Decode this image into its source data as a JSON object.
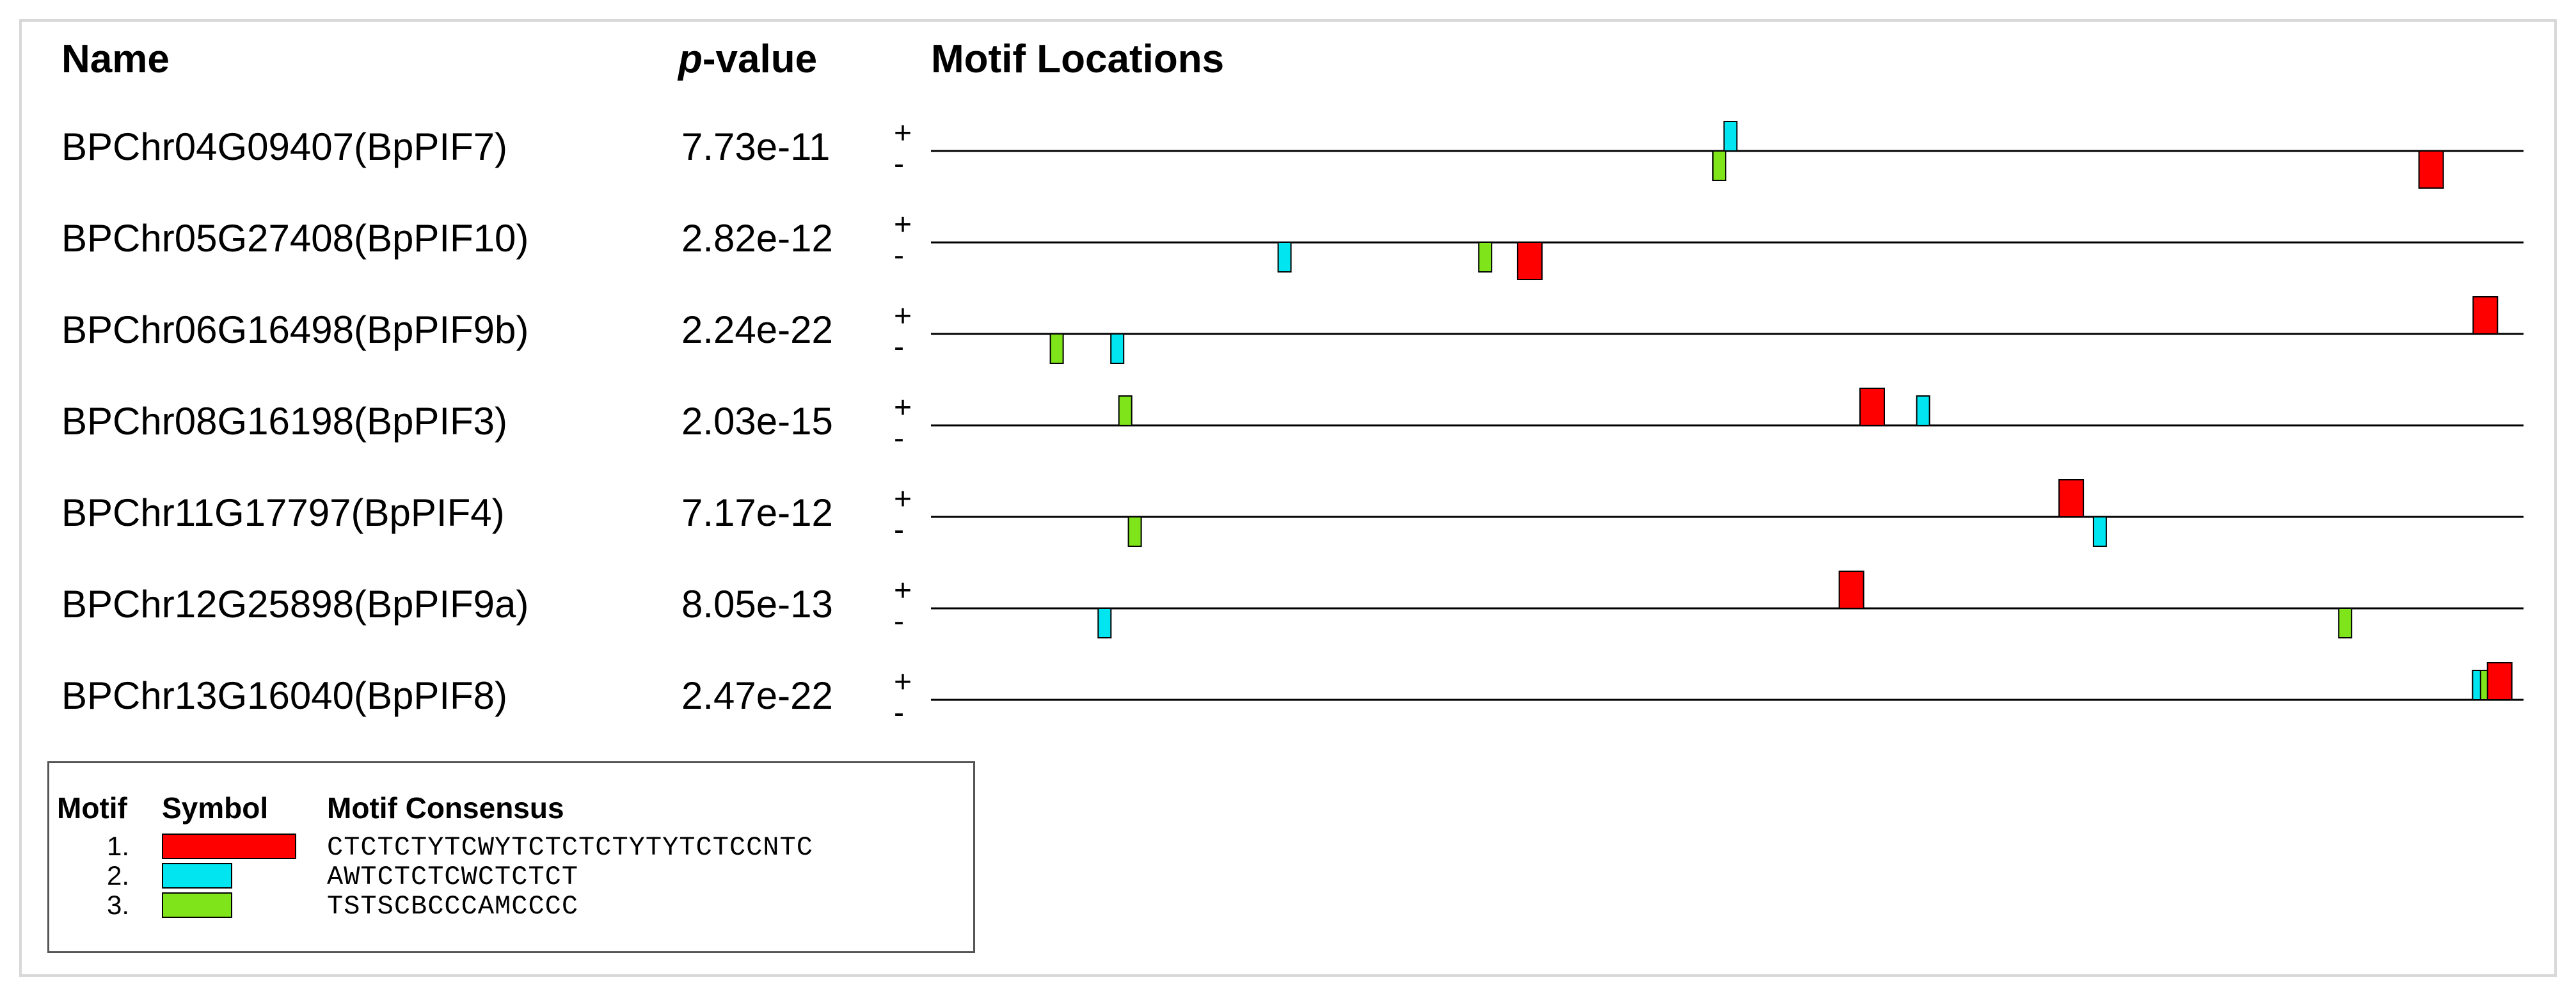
{
  "headers": {
    "name": "Name",
    "pvalue_p": "p",
    "pvalue_rest": "-value",
    "locations": "Motif Locations"
  },
  "strand": {
    "plus": "+",
    "minus": "-"
  },
  "motifs": [
    {
      "index": "1.",
      "color": "#ff0000",
      "consensus": "CTCTCTYTCWYTCTCTCTYTYTCTCCNTC"
    },
    {
      "index": "2.",
      "color": "#00e5f0",
      "consensus": "AWTCTCTCWCTCTCT"
    },
    {
      "index": "3.",
      "color": "#7fe51a",
      "consensus": "TSTSCBCCCAMCCCC"
    }
  ],
  "legend": {
    "motif_label": "Motif",
    "symbol_label": "Symbol",
    "consensus_label": "Motif Consensus"
  },
  "sequences": [
    {
      "name": "BPChr04G09407(BpPIF7)",
      "pvalue": "7.73e-11",
      "sites": [
        {
          "motif": 2,
          "strand": "+",
          "pos": 0.502
        },
        {
          "motif": 3,
          "strand": "-",
          "pos": 0.495
        },
        {
          "motif": 1,
          "strand": "-",
          "pos": 0.942
        }
      ]
    },
    {
      "name": "BPChr05G27408(BpPIF10)",
      "pvalue": "2.82e-12",
      "sites": [
        {
          "motif": 2,
          "strand": "-",
          "pos": 0.222
        },
        {
          "motif": 3,
          "strand": "-",
          "pos": 0.348
        },
        {
          "motif": 1,
          "strand": "-",
          "pos": 0.376
        }
      ]
    },
    {
      "name": "BPChr06G16498(BpPIF9b)",
      "pvalue": "2.24e-22",
      "sites": [
        {
          "motif": 3,
          "strand": "-",
          "pos": 0.079
        },
        {
          "motif": 2,
          "strand": "-",
          "pos": 0.117
        },
        {
          "motif": 1,
          "strand": "+",
          "pos": 0.976
        }
      ]
    },
    {
      "name": "BPChr08G16198(BpPIF3)",
      "pvalue": "2.03e-15",
      "sites": [
        {
          "motif": 3,
          "strand": "+",
          "pos": 0.122
        },
        {
          "motif": 1,
          "strand": "+",
          "pos": 0.591
        },
        {
          "motif": 2,
          "strand": "+",
          "pos": 0.623
        }
      ]
    },
    {
      "name": "BPChr11G17797(BpPIF4)",
      "pvalue": "7.17e-12",
      "sites": [
        {
          "motif": 3,
          "strand": "-",
          "pos": 0.128
        },
        {
          "motif": 1,
          "strand": "+",
          "pos": 0.716
        },
        {
          "motif": 2,
          "strand": "-",
          "pos": 0.734
        }
      ]
    },
    {
      "name": "BPChr12G25898(BpPIF9a)",
      "pvalue": "8.05e-13",
      "sites": [
        {
          "motif": 2,
          "strand": "-",
          "pos": 0.109
        },
        {
          "motif": 1,
          "strand": "+",
          "pos": 0.578
        },
        {
          "motif": 3,
          "strand": "-",
          "pos": 0.888
        }
      ]
    },
    {
      "name": "BPChr13G16040(BpPIF8)",
      "pvalue": "2.47e-22",
      "sites": [
        {
          "motif": 2,
          "strand": "+",
          "pos": 0.972
        },
        {
          "motif": 3,
          "strand": "+",
          "pos": 0.977
        },
        {
          "motif": 1,
          "strand": "+",
          "pos": 0.985
        }
      ]
    }
  ]
}
